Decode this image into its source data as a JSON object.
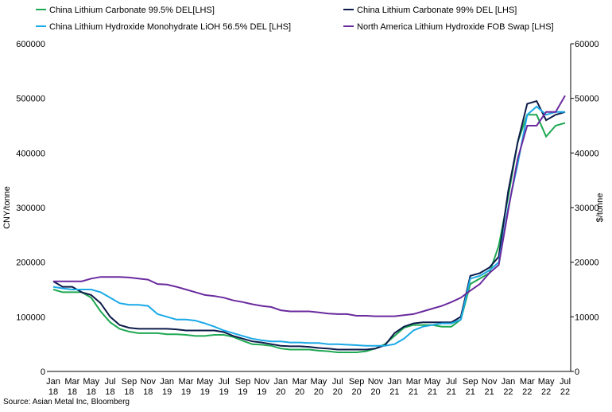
{
  "chart_data": {
    "type": "line",
    "categories": [
      "Jan 18",
      null,
      "Mar 18",
      null,
      "May 18",
      null,
      "Jul 18",
      null,
      "Sep 18",
      null,
      "Nov 18",
      null,
      "Jan 19",
      null,
      "Mar 19",
      null,
      "May 19",
      null,
      "Jul 19",
      null,
      "Sep 19",
      null,
      "Nov 19",
      null,
      "Jan 20",
      null,
      "Mar 20",
      null,
      "May 20",
      null,
      "Jul 20",
      null,
      "Sep 20",
      null,
      "Nov 20",
      null,
      "Jan 21",
      null,
      "Mar 21",
      null,
      "May 21",
      null,
      "Jul 21",
      null,
      "Sep 21",
      null,
      "Nov 21",
      null,
      "Jan 22",
      null,
      "Mar 22",
      null,
      "May 22",
      null,
      "Jul 22"
    ],
    "y_label": "CNY/tonne",
    "y2_label": "$/tonne",
    "ylim": [
      0,
      600000
    ],
    "yticks": [
      0,
      100000,
      200000,
      300000,
      400000,
      500000,
      600000
    ],
    "y2lim": [
      0,
      60000
    ],
    "y2ticks": [
      0,
      10000,
      20000,
      30000,
      40000,
      50000,
      60000
    ],
    "series": [
      {
        "name": "China Lithium Carbonate 99.5% DEL[LHS]",
        "color": "#1ea852",
        "values": [
          150000,
          145000,
          145000,
          145000,
          135000,
          110000,
          90000,
          78000,
          73000,
          70000,
          70000,
          70000,
          68000,
          68000,
          67000,
          65000,
          65000,
          67000,
          67000,
          63000,
          56000,
          50000,
          49000,
          47000,
          42000,
          40000,
          40000,
          40000,
          38000,
          37000,
          35000,
          35000,
          35000,
          37000,
          42000,
          50000,
          65000,
          80000,
          85000,
          85000,
          85000,
          82000,
          82000,
          95000,
          160000,
          170000,
          180000,
          230000,
          320000,
          420000,
          470000,
          470000,
          430000,
          450000,
          455000
        ]
      },
      {
        "name": "China Lithium Carbonate 99% DEL [LHS]",
        "color": "#0d1b4a",
        "values": [
          165000,
          155000,
          155000,
          145000,
          140000,
          125000,
          100000,
          85000,
          80000,
          78000,
          78000,
          78000,
          78000,
          77000,
          75000,
          75000,
          75000,
          75000,
          72000,
          65000,
          60000,
          55000,
          53000,
          50000,
          47000,
          46000,
          46000,
          45000,
          43000,
          42000,
          40000,
          40000,
          40000,
          40000,
          42000,
          48000,
          70000,
          82000,
          88000,
          90000,
          90000,
          90000,
          90000,
          100000,
          175000,
          180000,
          190000,
          210000,
          330000,
          420000,
          490000,
          495000,
          460000,
          470000,
          475000
        ]
      },
      {
        "name": "China Lithium Hydroxide Monohydrate LiOH 56.5% DEL [LHS]",
        "color": "#1aa9e6",
        "values": [
          155000,
          152000,
          150000,
          150000,
          150000,
          145000,
          135000,
          125000,
          122000,
          122000,
          120000,
          105000,
          100000,
          95000,
          95000,
          93000,
          88000,
          82000,
          75000,
          70000,
          65000,
          60000,
          57000,
          55000,
          55000,
          53000,
          53000,
          52000,
          52000,
          50000,
          50000,
          49000,
          48000,
          47000,
          47000,
          47000,
          50000,
          60000,
          75000,
          82000,
          85000,
          88000,
          88000,
          95000,
          170000,
          175000,
          185000,
          200000,
          300000,
          380000,
          470000,
          485000,
          470000,
          475000,
          475000
        ]
      },
      {
        "name": "North America Lithium Hydroxide FOB Swap [LHS]",
        "color": "#6a2a9e",
        "axis": "y2",
        "values": [
          16500,
          16500,
          16500,
          16500,
          17000,
          17300,
          17300,
          17300,
          17200,
          17000,
          16800,
          16000,
          15900,
          15500,
          15000,
          14500,
          14000,
          13800,
          13500,
          13000,
          12700,
          12300,
          12000,
          11800,
          11200,
          11000,
          11000,
          11000,
          10800,
          10600,
          10500,
          10500,
          10200,
          10200,
          10100,
          10100,
          10100,
          10300,
          10500,
          11000,
          11500,
          12000,
          12700,
          13500,
          14800,
          16000,
          18000,
          19500,
          29500,
          39000,
          45000,
          45000,
          47500,
          47500,
          50500
        ]
      }
    ],
    "source": "Source: Asian Metal Inc, Bloomberg"
  }
}
